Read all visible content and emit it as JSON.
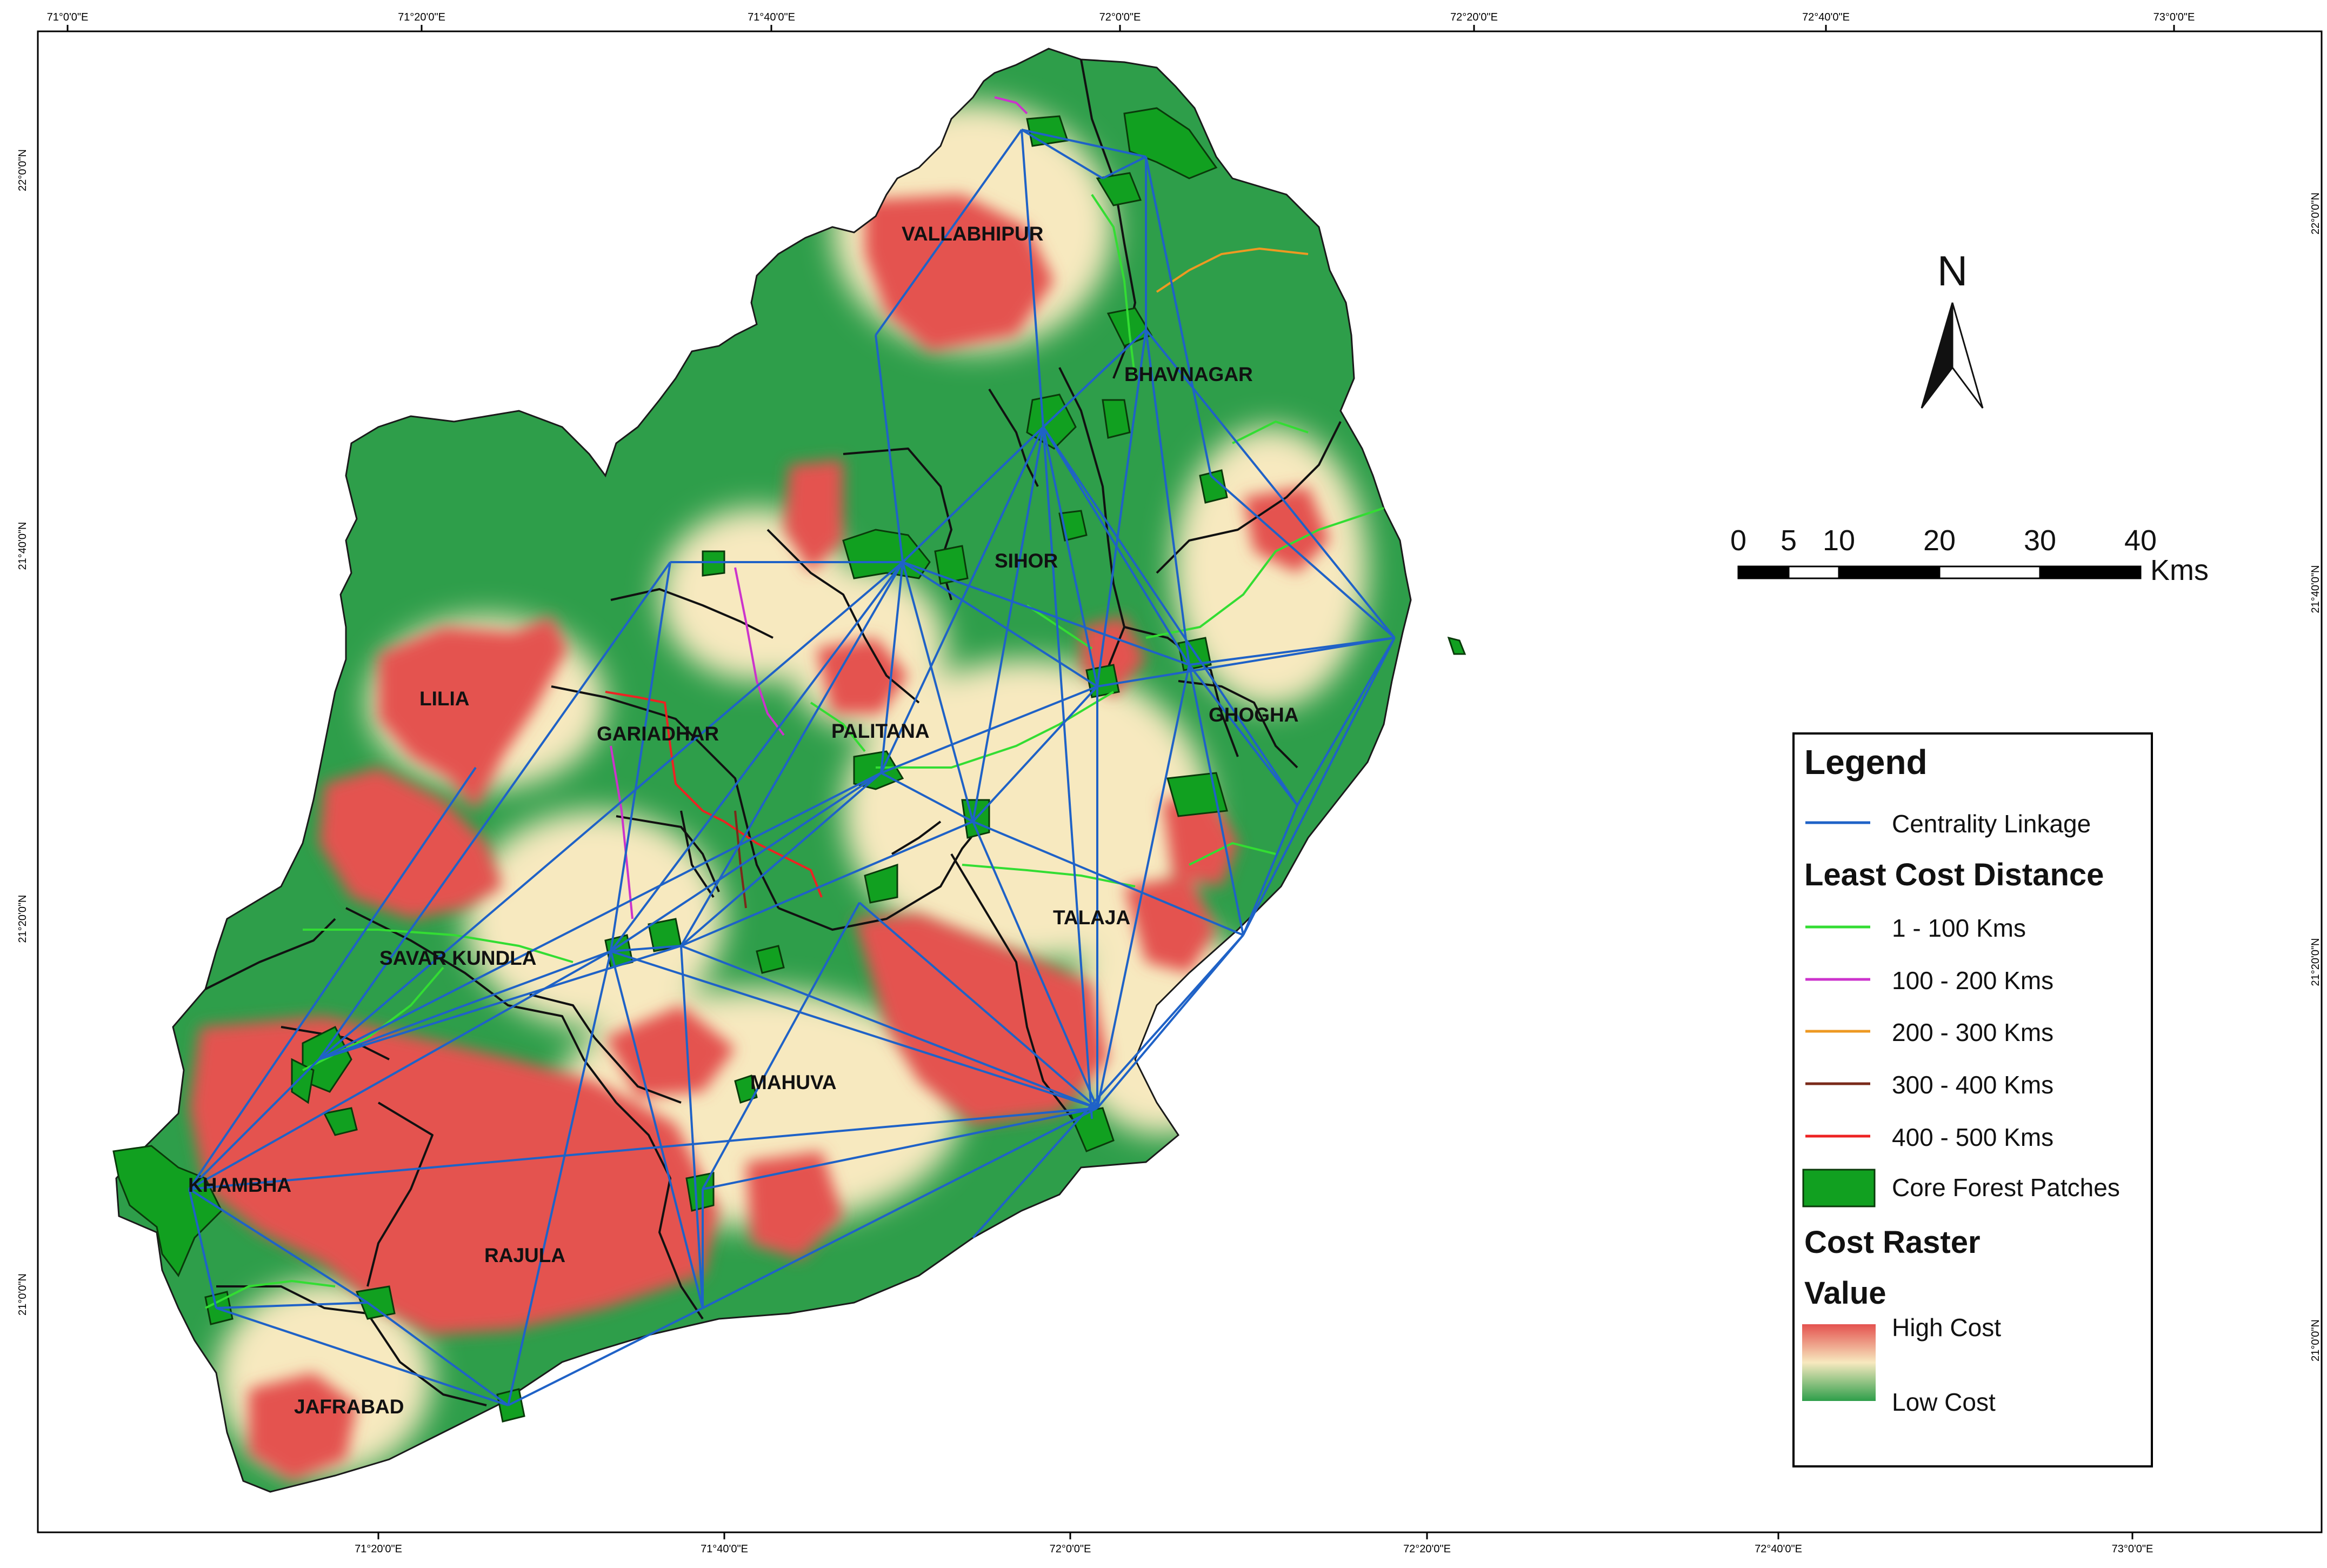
{
  "colors": {
    "high_cost": "#e4524f",
    "mid_cost": "#f7e9bf",
    "low_cost": "#2e9e4a",
    "linkage": "#1f62c7",
    "lcd_1_100": "#33dd33",
    "lcd_100_200": "#cc33cc",
    "lcd_200_300": "#ee9922",
    "lcd_300_400": "#7a2a1a",
    "lcd_400_500": "#ee2222",
    "core_forest": "#11a020"
  },
  "graticule": {
    "top": [
      "71°0'0\"E",
      "71°20'0\"E",
      "71°40'0\"E",
      "72°0'0\"E",
      "72°20'0\"E",
      "72°40'0\"E",
      "73°0'0\"E"
    ],
    "bottom": [
      "71°20'0\"E",
      "71°40'0\"E",
      "72°0'0\"E",
      "72°20'0\"E",
      "72°40'0\"E",
      "73°0'0\"E"
    ],
    "left": [
      "22°0'0\"N",
      "21°40'0\"N",
      "21°20'0\"N",
      "21°0'0\"N"
    ],
    "right": [
      "22°0'0\"N",
      "21°40'0\"N",
      "21°20'0\"N",
      "21°0'0\"N"
    ]
  },
  "regions": [
    {
      "id": "vallabhipur",
      "name": "VALLABHIPUR"
    },
    {
      "id": "bhavnagar",
      "name": "BHAVNAGAR"
    },
    {
      "id": "sihor",
      "name": "SIHOR"
    },
    {
      "id": "lilia",
      "name": "LILIA"
    },
    {
      "id": "gariadhar",
      "name": "GARIADHAR"
    },
    {
      "id": "palitana",
      "name": "PALITANA"
    },
    {
      "id": "ghogha",
      "name": "GHOGHA"
    },
    {
      "id": "talaja",
      "name": "TALAJA"
    },
    {
      "id": "savar-kundla",
      "name": "SAVAR KUNDLA"
    },
    {
      "id": "mahuva",
      "name": "MAHUVA"
    },
    {
      "id": "khambha",
      "name": "KHAMBHA"
    },
    {
      "id": "rajula",
      "name": "RAJULA"
    },
    {
      "id": "jafrabad",
      "name": "JAFRABAD"
    }
  ],
  "north_arrow": {
    "label": "N"
  },
  "scale_bar": {
    "ticks": [
      "0",
      "5",
      "10",
      "20",
      "30",
      "40"
    ],
    "unit": "Kms"
  },
  "legend": {
    "title": "Legend",
    "linkage_label": "Centrality Linkage",
    "lcd_title": "Least Cost Distance",
    "lcd_items": [
      {
        "label": "1 - 100 Kms",
        "color_key": "lcd_1_100"
      },
      {
        "label": "100 - 200 Kms",
        "color_key": "lcd_100_200"
      },
      {
        "label": "200 - 300 Kms",
        "color_key": "lcd_200_300"
      },
      {
        "label": "300 - 400 Kms",
        "color_key": "lcd_300_400"
      },
      {
        "label": "400 - 500 Kms",
        "color_key": "lcd_400_500"
      }
    ],
    "core_label": "Core Forest Patches",
    "raster_title": "Cost Raster",
    "value_title": "Value",
    "high_label": "High Cost",
    "low_label": "Low Cost"
  }
}
